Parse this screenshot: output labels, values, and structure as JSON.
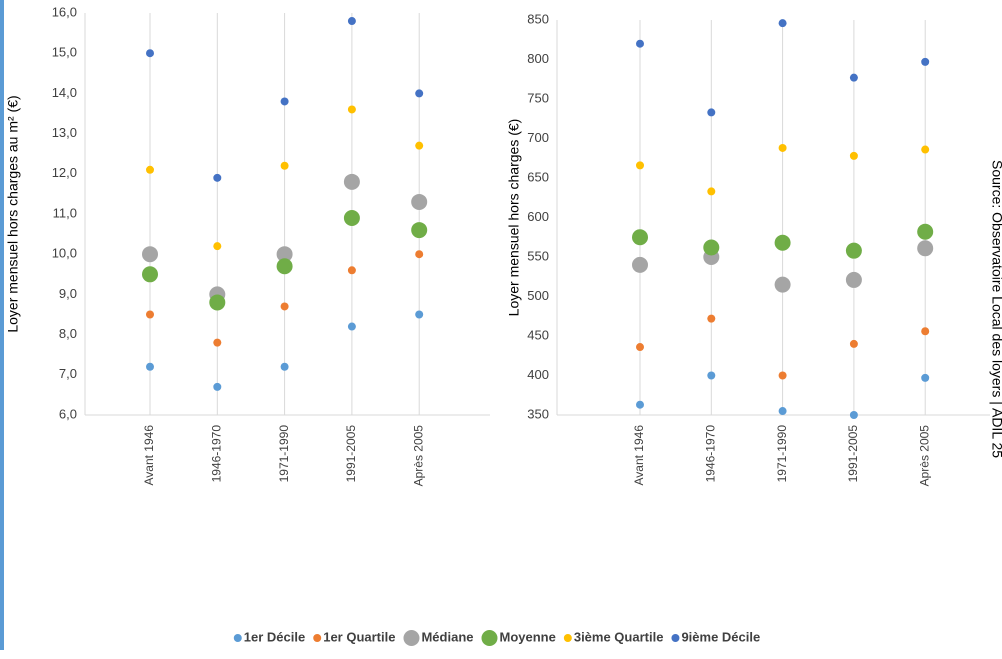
{
  "chart_data": [
    {
      "type": "scatter",
      "y_label": "Loyer mensuel hors charges au m² (€)",
      "categories": [
        "Avant 1946",
        "1946-1970",
        "1971-1990",
        "1991-2005",
        "Après 2005"
      ],
      "ylim": [
        6,
        16
      ],
      "yticks": [
        {
          "value": 6,
          "label": "6,0"
        },
        {
          "value": 7,
          "label": "7,0"
        },
        {
          "value": 8,
          "label": "8,0"
        },
        {
          "value": 9,
          "label": "9,0"
        },
        {
          "value": 10,
          "label": "10,0"
        },
        {
          "value": 11,
          "label": "11,0"
        },
        {
          "value": 12,
          "label": "12,0"
        },
        {
          "value": 13,
          "label": "13,0"
        },
        {
          "value": 14,
          "label": "14,0"
        },
        {
          "value": 15,
          "label": "15,0"
        },
        {
          "value": 16,
          "label": "16,0"
        }
      ],
      "series": [
        {
          "name": "1er Décile",
          "color": "#5b9bd5",
          "values": [
            7.2,
            6.7,
            7.2,
            8.2,
            8.5
          ]
        },
        {
          "name": "1er Quartile",
          "color": "#ed7d31",
          "values": [
            8.5,
            7.8,
            8.7,
            9.6,
            10.0
          ]
        },
        {
          "name": "Médiane",
          "color": "#a5a5a5",
          "values": [
            10.0,
            9.0,
            10.0,
            11.8,
            11.3
          ]
        },
        {
          "name": "Moyenne",
          "color": "#70ad47",
          "values": [
            9.5,
            8.8,
            9.7,
            10.9,
            10.6
          ]
        },
        {
          "name": "3ième Quartile",
          "color": "#ffc000",
          "values": [
            12.1,
            10.2,
            12.2,
            13.6,
            12.7
          ]
        },
        {
          "name": "9ième Décile",
          "color": "#4472c4",
          "values": [
            15.0,
            11.9,
            13.8,
            15.8,
            14.0
          ]
        }
      ]
    },
    {
      "type": "scatter",
      "y_label": "Loyer mensuel hors charges (€)",
      "categories": [
        "Avant 1946",
        "1946-1970",
        "1971-1990",
        "1991-2005",
        "Après 2005"
      ],
      "ylim": [
        350,
        850
      ],
      "yticks": [
        350,
        400,
        450,
        500,
        550,
        600,
        650,
        700,
        750,
        800,
        850
      ],
      "series": [
        {
          "color": "#5b9bd5",
          "values": [
            363,
            400,
            355,
            350,
            397
          ]
        },
        {
          "color": "#ed7d31",
          "values": [
            436,
            472,
            400,
            440,
            456
          ]
        },
        {
          "color": "#a5a5a5",
          "values": [
            540,
            550,
            515,
            521,
            561
          ]
        },
        {
          "color": "#70ad47",
          "values": [
            575,
            562,
            568,
            558,
            582
          ]
        },
        {
          "color": "#ffc000",
          "values": [
            666,
            633,
            688,
            678,
            686
          ]
        },
        {
          "color": "#4472c4",
          "values": [
            820,
            733,
            846,
            777,
            797
          ]
        }
      ],
      "source": "Source: Observatoire Local des loyers | ADIL 25"
    }
  ]
}
